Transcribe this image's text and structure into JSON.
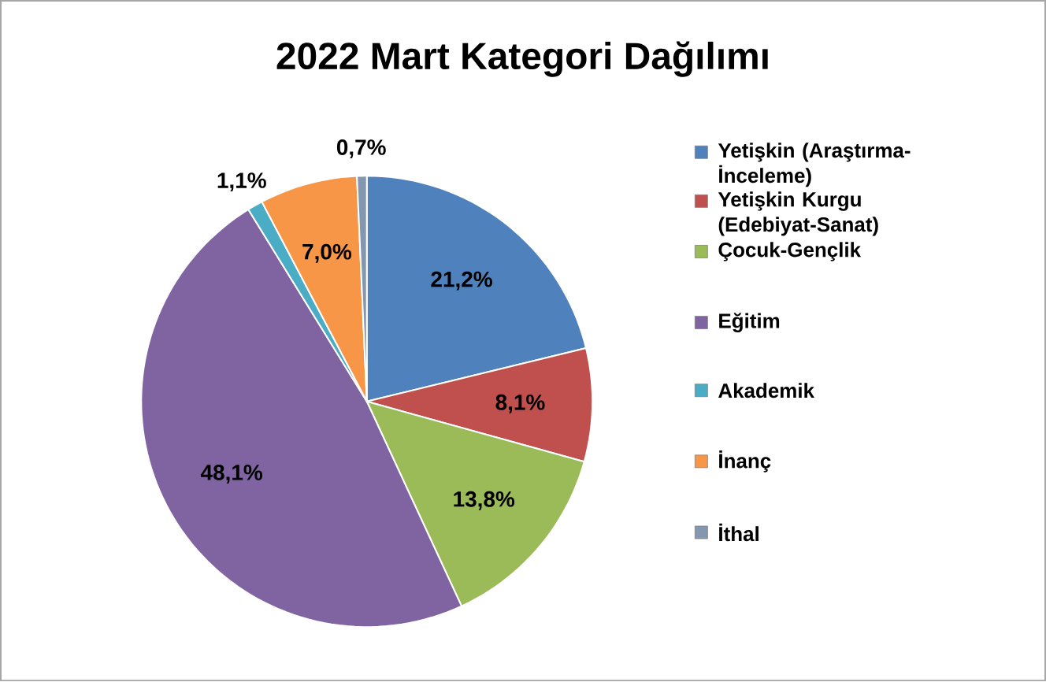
{
  "chart_data": {
    "type": "pie",
    "title": "2022 Mart Kategori Dağılımı",
    "categories": [
      "Yetişkin (Araştırma-İnceleme)",
      "Yetişkin Kurgu (Edebiyat-Sanat)",
      "Çocuk-Gençlik",
      "Eğitim",
      "Akademik",
      "İnanç",
      "İthal"
    ],
    "values": [
      21.2,
      8.1,
      13.8,
      48.1,
      1.1,
      7.0,
      0.7
    ],
    "value_labels": [
      "21,2%",
      "8,1%",
      "13,8%",
      "48,1%",
      "1,1%",
      "7,0%",
      "0,7%"
    ],
    "colors": [
      "#4f81bd",
      "#c0504d",
      "#9bbb59",
      "#8064a2",
      "#4bacc6",
      "#f79646",
      "#8497b0"
    ],
    "legend": "right"
  }
}
